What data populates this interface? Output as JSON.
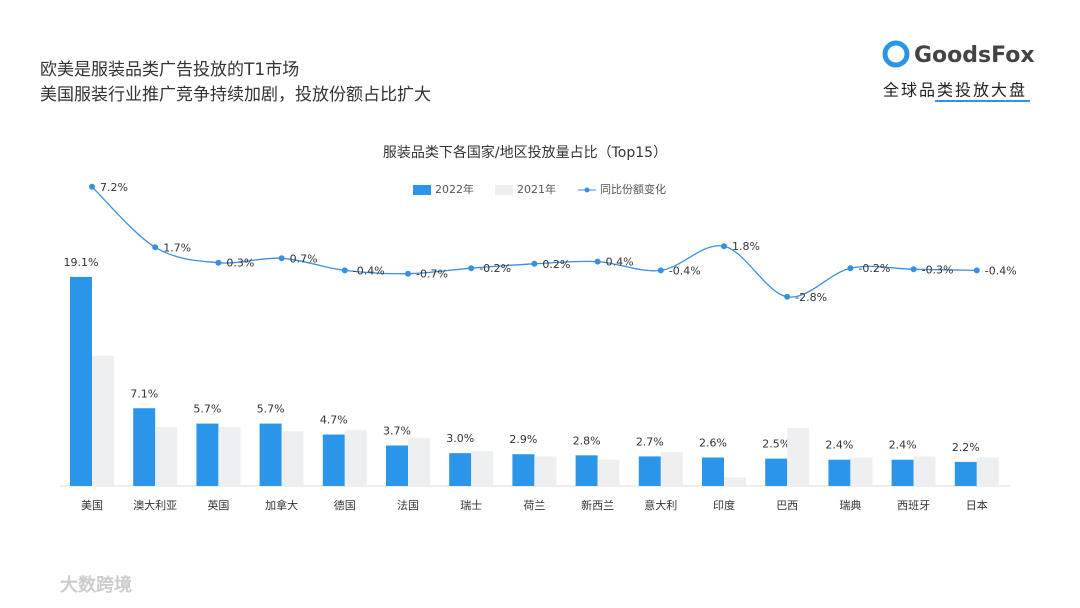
{
  "header": {
    "line1": "欧美是服装品类广告投放的T1市场",
    "line2": "美国服装行业推广竞争持续加剧，投放份额占比扩大",
    "logo": "GoodsFox",
    "tagline": "全球品类投放大盘"
  },
  "watermark": "大数跨境",
  "chart_data": {
    "type": "bar",
    "title": "服装品类下各国家/地区投放量占比（Top15）",
    "categories": [
      "美国",
      "澳大利亚",
      "英国",
      "加拿大",
      "德国",
      "法国",
      "瑞士",
      "荷兰",
      "新西兰",
      "意大利",
      "印度",
      "巴西",
      "瑞典",
      "西班牙",
      "日本"
    ],
    "series": [
      {
        "name": "2022年",
        "color": "#2b95e9",
        "values": [
          19.1,
          7.1,
          5.7,
          5.7,
          4.7,
          3.7,
          3.0,
          2.9,
          2.8,
          2.7,
          2.6,
          2.5,
          2.4,
          2.4,
          2.2
        ],
        "value_labels": [
          "19.1%",
          "7.1%",
          "5.7%",
          "5.7%",
          "4.7%",
          "3.7%",
          "3.0%",
          "2.9%",
          "2.8%",
          "2.7%",
          "2.6%",
          "2.5%",
          "2.4%",
          "2.4%",
          "2.2%"
        ]
      },
      {
        "name": "2021年",
        "color": "#eeeff1",
        "values": [
          11.9,
          5.4,
          5.4,
          5.0,
          5.1,
          4.4,
          3.2,
          2.7,
          2.4,
          3.1,
          0.8,
          5.3,
          2.6,
          2.7,
          2.6
        ]
      },
      {
        "name": "同比份额变化",
        "color": "#3b8fe0",
        "type": "line",
        "axis": "y2",
        "values": [
          7.2,
          1.7,
          0.3,
          0.7,
          -0.4,
          -0.7,
          -0.2,
          0.2,
          0.4,
          -0.4,
          1.8,
          -2.8,
          -0.2,
          -0.3,
          -0.4
        ],
        "value_labels": [
          "7.2%",
          "1.7%",
          "0.3%",
          "0.7%",
          "-0.4%",
          "-0.7%",
          "-0.2%",
          "0.2%",
          "0.4%",
          "-0.4%",
          "1.8%",
          "-2.8%",
          "-0.2%",
          "-0.3%",
          "-0.4%"
        ]
      }
    ],
    "ylim": [
      0,
      20
    ],
    "y2lim": [
      -4,
      8
    ],
    "legend": "top"
  }
}
